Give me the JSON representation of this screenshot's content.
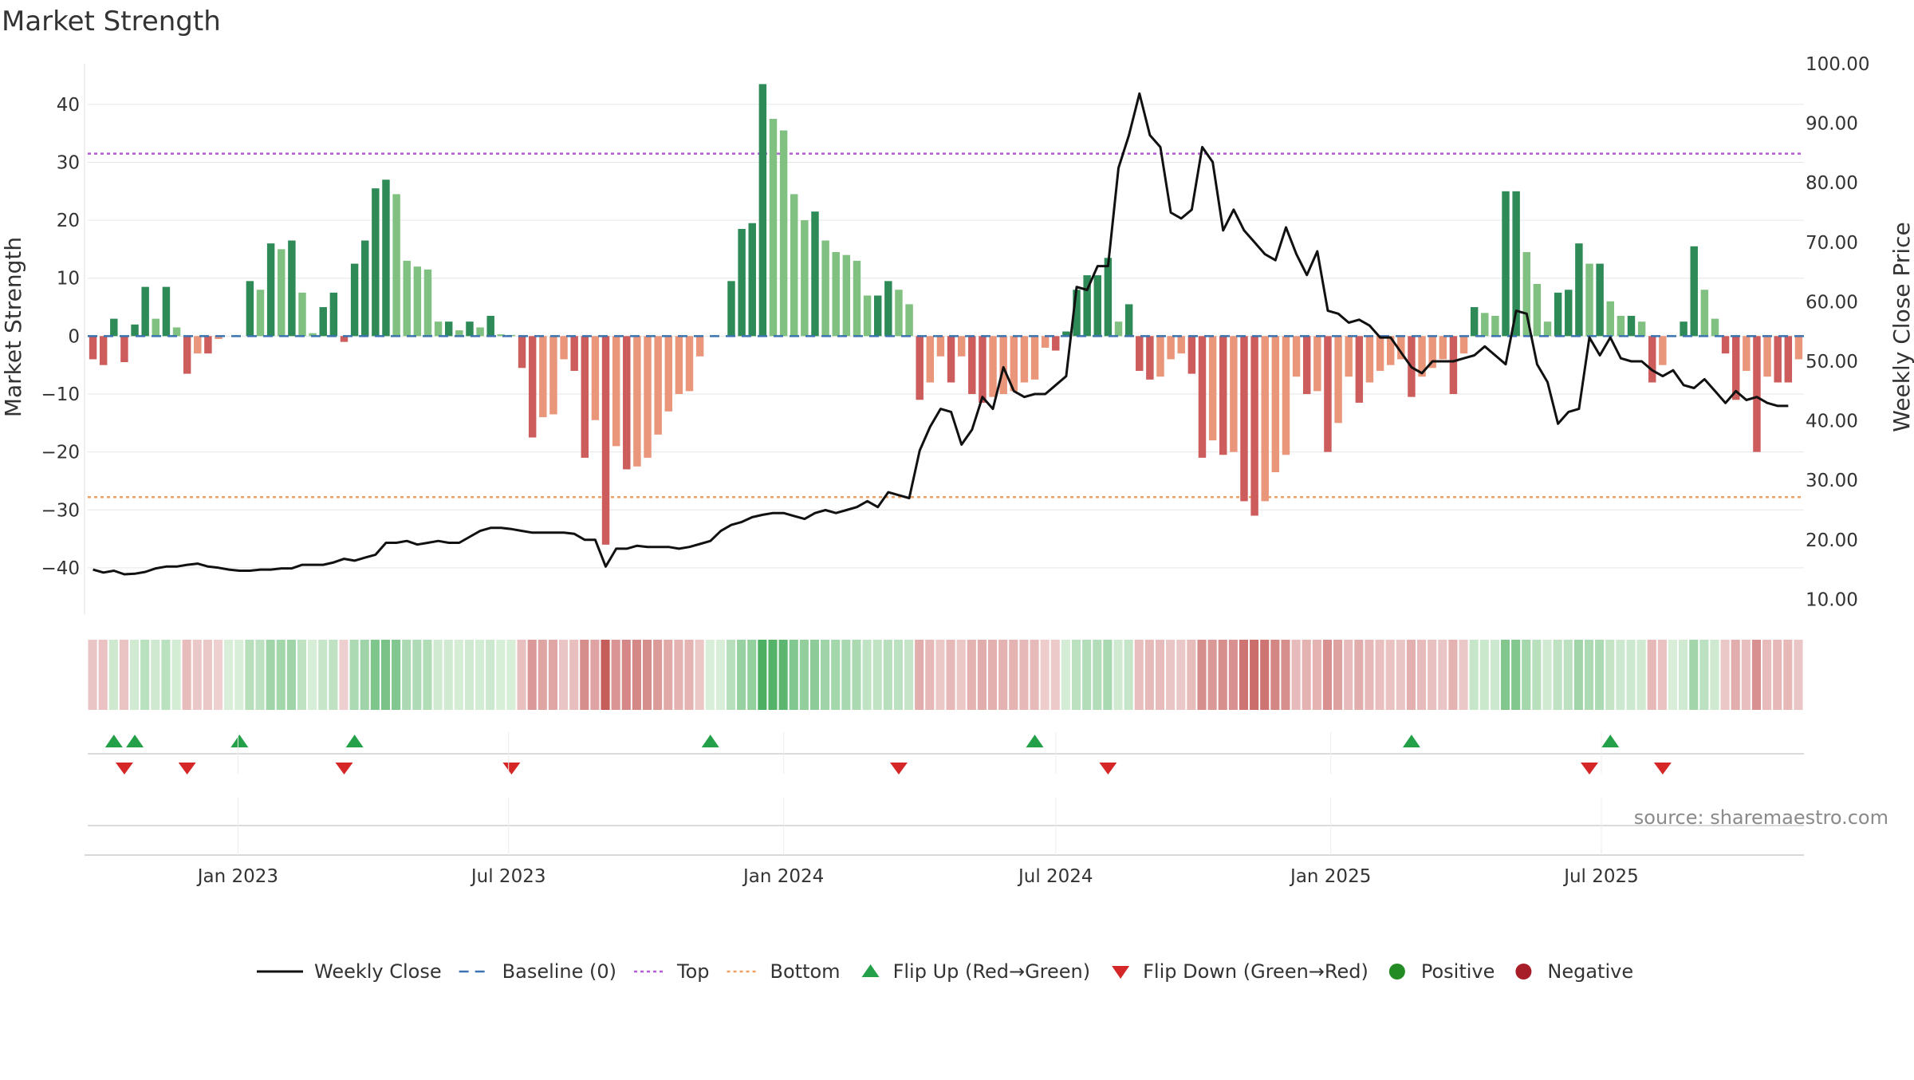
{
  "title": "Market Strength",
  "source": "source: sharemaestro.com",
  "legend": [
    {
      "key": "close",
      "label": "Weekly Close",
      "icon": "line-solid",
      "color": "#111111"
    },
    {
      "key": "baseline",
      "label": "Baseline (0)",
      "icon": "line-dashed",
      "color": "#3b73b0"
    },
    {
      "key": "top",
      "label": "Top",
      "icon": "line-dotted",
      "color": "#b35ad8"
    },
    {
      "key": "bottom",
      "label": "Bottom",
      "icon": "line-dotted",
      "color": "#f0a060"
    },
    {
      "key": "flipup",
      "label": "Flip Up (Red→Green)",
      "icon": "triangle-up",
      "color": "#24a148"
    },
    {
      "key": "flipdown",
      "label": "Flip Down (Green→Red)",
      "icon": "triangle-down",
      "color": "#d62728"
    },
    {
      "key": "positive",
      "label": "Positive",
      "icon": "circle",
      "color": "#238b23"
    },
    {
      "key": "negative",
      "label": "Negative",
      "icon": "circle",
      "color": "#a81e28"
    }
  ],
  "chart_data": {
    "type": "bar",
    "x_start": "2022-09-26",
    "x_step_days": 7,
    "x_ticks": [
      {
        "date": "2023-01-01",
        "label": "Jan 2023"
      },
      {
        "date": "2023-07-01",
        "label": "Jul 2023"
      },
      {
        "date": "2024-01-01",
        "label": "Jan 2024"
      },
      {
        "date": "2024-07-01",
        "label": "Jul 2024"
      },
      {
        "date": "2025-01-01",
        "label": "Jan 2025"
      },
      {
        "date": "2025-07-01",
        "label": "Jul 2025"
      }
    ],
    "y_left": {
      "label": "Market Strength",
      "lim": [
        -48,
        47
      ],
      "ticks": [
        40,
        30,
        20,
        10,
        0,
        -10,
        -20,
        -30,
        -40
      ],
      "tick_labels": [
        "40",
        "30",
        "20",
        "10",
        "0",
        "−10",
        "−20",
        "−30",
        "−40"
      ]
    },
    "y_right": {
      "label": "Weekly Close Price",
      "lim": [
        7.5,
        100
      ],
      "ticks": [
        100,
        90,
        80,
        70,
        60,
        50,
        40,
        30,
        20,
        10
      ],
      "tick_labels": [
        "100.00",
        "90.00",
        "80.00",
        "70.00",
        "60.00",
        "50.00",
        "40.00",
        "30.00",
        "20.00",
        "10.00"
      ]
    },
    "top_level": 31.5,
    "bottom_level": -27.8,
    "baseline": 0,
    "colors": {
      "pos_strong": "#2e8b57",
      "pos_weak": "#80c080",
      "neg_strong": "#cd5c5c",
      "neg_weak": "#e9967a",
      "close": "#111111",
      "baseline": "#3b73b0",
      "top": "#b35ad8",
      "bottom": "#f0a060",
      "flip_up": "#24a148",
      "flip_down": "#d62728"
    },
    "series": [
      {
        "name": "Market Strength",
        "values": [
          -4,
          -5,
          3,
          -4.5,
          2,
          8.5,
          3,
          8.5,
          1.5,
          -6.5,
          -3,
          -3,
          -0.5,
          0,
          0,
          9.5,
          8,
          16,
          15,
          16.5,
          7.5,
          0.5,
          5,
          7.5,
          -1,
          12.5,
          16.5,
          25.5,
          27,
          24.5,
          13,
          12,
          11.5,
          2.5,
          2.5,
          1,
          2.5,
          1.5,
          3.5,
          0.3,
          0.2,
          -5.5,
          -17.5,
          -14,
          -13.5,
          -4,
          -6,
          -21,
          -14.5,
          -36,
          -19,
          -23,
          -22.5,
          -21,
          -17,
          -13,
          -10,
          -9.5,
          -3.5,
          0,
          0,
          9.5,
          18.5,
          19.5,
          43.5,
          37.5,
          35.5,
          24.5,
          20,
          21.5,
          16.5,
          14.5,
          14,
          13,
          7,
          7,
          9.5,
          8,
          5.5,
          -11,
          -8,
          -3.5,
          -8,
          -3.5,
          -10,
          -11.5,
          -10.5,
          -10,
          -9.5,
          -8,
          -7.5,
          -2,
          -2.5,
          0.8,
          8,
          10.5,
          10.5,
          13.5,
          2.5,
          5.5,
          -6,
          -7.5,
          -7,
          -4,
          -3,
          -6.5,
          -21,
          -18,
          -20.5,
          -20,
          -28.5,
          -31,
          -28.5,
          -23.5,
          -20.5,
          -7,
          -10,
          -9.5,
          -20,
          -15,
          -7,
          -11.5,
          -8,
          -6,
          -5,
          -4,
          -10.5,
          -7,
          -5.5,
          -4,
          -10,
          -3,
          5,
          4,
          3.5,
          25,
          25,
          14.5,
          9,
          2.5,
          7.5,
          8,
          16,
          12.5,
          12.5,
          6,
          3.5,
          3.5,
          2.5,
          -8,
          -5,
          0,
          2.5,
          15.5,
          8,
          3,
          -3,
          -11,
          -6,
          -20,
          -7,
          -8,
          -8,
          -4
        ]
      },
      {
        "name": "Weekly Close",
        "values": [
          15,
          14.5,
          14.8,
          14.2,
          14.3,
          14.6,
          15.2,
          15.5,
          15.5,
          15.8,
          16,
          15.5,
          15.3,
          15,
          14.8,
          14.8,
          15,
          15,
          15.2,
          15.2,
          15.8,
          15.8,
          15.8,
          16.2,
          16.8,
          16.5,
          17,
          17.5,
          19.5,
          19.5,
          19.8,
          19.2,
          19.5,
          19.8,
          19.5,
          19.5,
          20.5,
          21.5,
          22,
          22,
          21.8,
          21.5,
          21.2,
          21.2,
          21.2,
          21.2,
          21,
          20,
          20,
          15.5,
          18.5,
          18.5,
          19,
          18.8,
          18.8,
          18.8,
          18.5,
          18.8,
          19.3,
          19.8,
          21.5,
          22.5,
          23,
          23.8,
          24.2,
          24.5,
          24.5,
          24,
          23.5,
          24.5,
          25,
          24.5,
          25,
          25.5,
          26.5,
          25.5,
          28,
          27.5,
          27,
          35,
          39,
          42,
          41.5,
          36,
          38.5,
          44,
          42,
          49,
          45,
          44,
          44.5,
          44.5,
          46,
          47.5,
          62.5,
          62,
          66,
          66,
          82.5,
          88,
          95,
          88,
          86,
          75,
          74,
          75.5,
          86,
          83.5,
          72,
          75.5,
          72,
          70,
          68,
          67,
          72.5,
          68,
          64.5,
          68.5,
          58.5,
          58,
          56.5,
          57,
          56,
          54,
          54,
          51.5,
          49,
          48,
          50,
          50,
          50,
          50.5,
          51,
          52.5,
          51,
          49.5,
          58.5,
          58,
          49.5,
          46.5,
          39.5,
          41.5,
          42,
          54,
          51,
          54,
          50.5,
          50,
          50,
          48.5,
          47.5,
          48.5,
          46,
          45.5,
          47,
          45,
          43,
          45,
          43.5,
          44,
          43,
          42.5,
          42.5
        ]
      }
    ],
    "flip_up_weeks": [
      2,
      4,
      14,
      25,
      59,
      90,
      126,
      145
    ],
    "flip_down_weeks": [
      3,
      9,
      24,
      40,
      77,
      97,
      143,
      150
    ]
  }
}
